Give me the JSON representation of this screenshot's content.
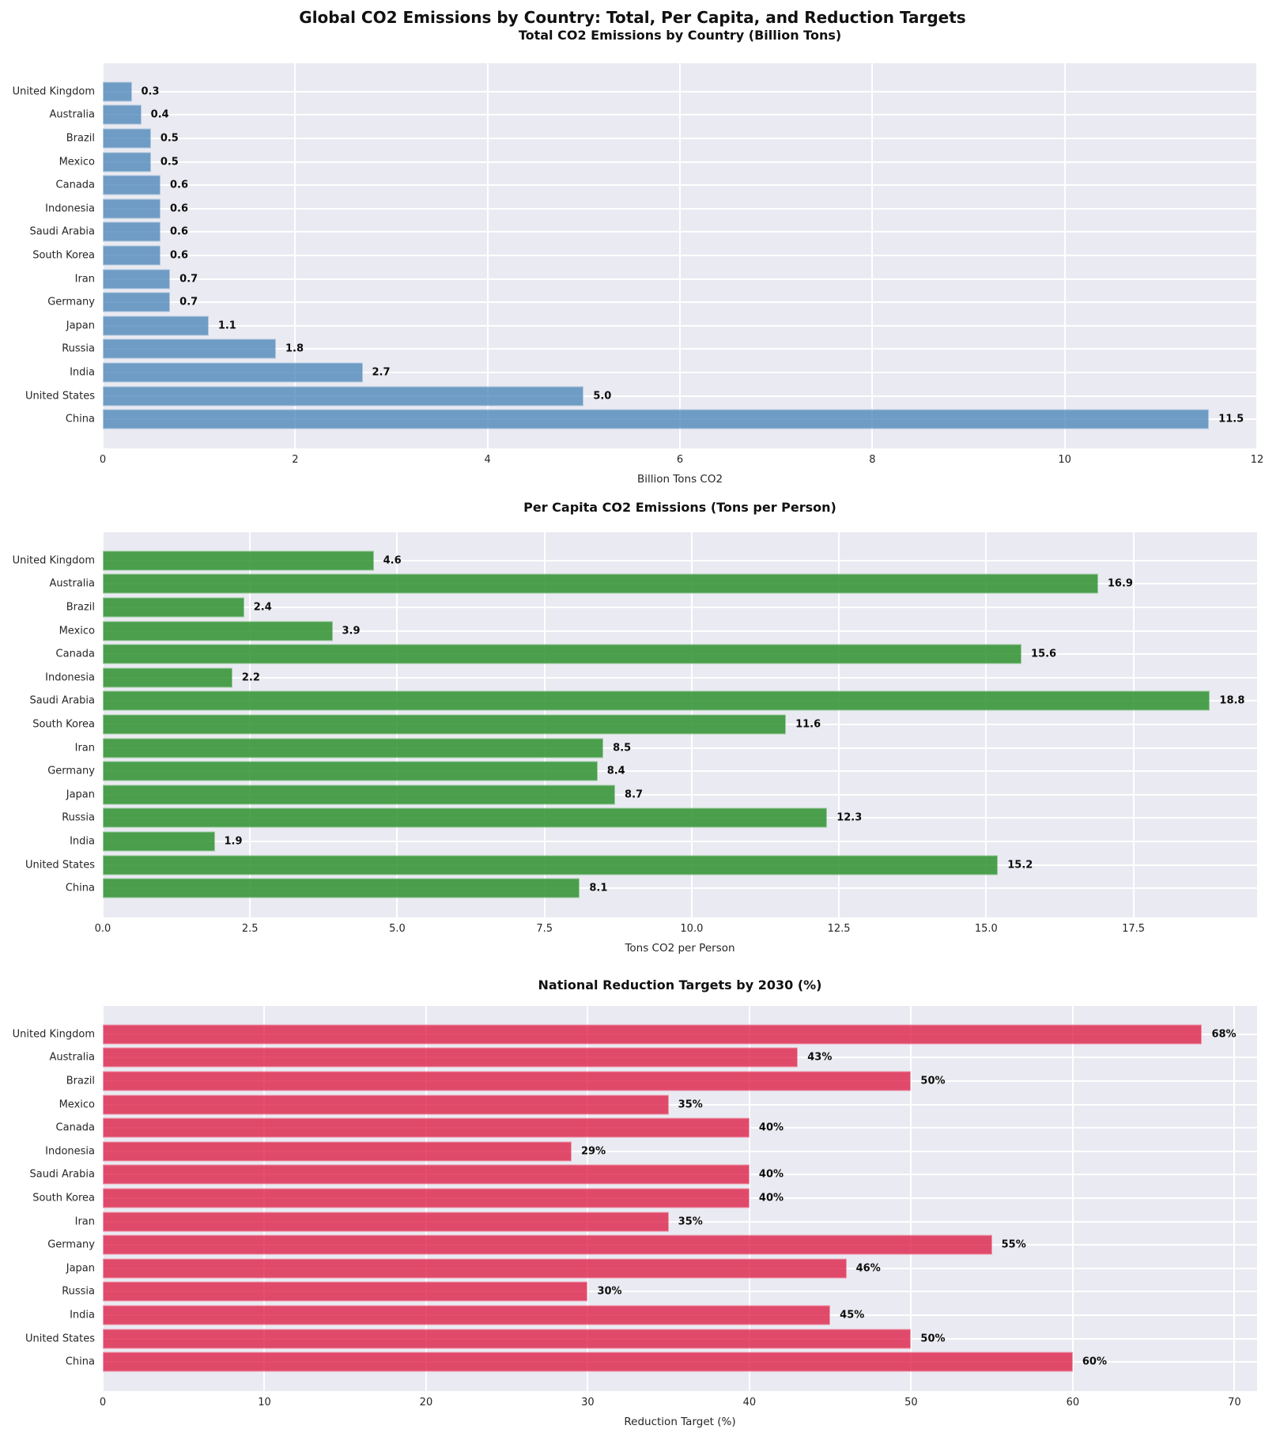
{
  "figure_title": "Global CO2 Emissions by Country: Total, Per Capita, and Reduction Targets",
  "style": {
    "plot_bg": "#EAEAF2",
    "grid_color": "#FFFFFF",
    "text_color": "#262626",
    "figure_bg": "#FFFFFF"
  },
  "chart_data": [
    {
      "type": "bar",
      "orientation": "horizontal",
      "title": "Total CO2 Emissions by Country (Billion Tons)",
      "xlabel": "Billion Tons CO2",
      "bar_color": "#4682B4",
      "bar_alpha": 0.75,
      "grid": true,
      "xlim": [
        0,
        12.0
      ],
      "xticks": [
        0,
        2,
        4,
        6,
        8,
        10,
        12
      ],
      "xtick_labels": [
        "0",
        "2",
        "4",
        "6",
        "8",
        "10",
        "12"
      ],
      "categories": [
        "United Kingdom",
        "Australia",
        "Brazil",
        "Mexico",
        "Canada",
        "Indonesia",
        "Saudi Arabia",
        "South Korea",
        "Iran",
        "Germany",
        "Japan",
        "Russia",
        "India",
        "United States",
        "China"
      ],
      "values": [
        0.3,
        0.4,
        0.5,
        0.5,
        0.6,
        0.6,
        0.6,
        0.6,
        0.7,
        0.7,
        1.1,
        1.8,
        2.7,
        5.0,
        11.5
      ],
      "value_labels": [
        "0.3",
        "0.4",
        "0.5",
        "0.5",
        "0.6",
        "0.6",
        "0.6",
        "0.6",
        "0.7",
        "0.7",
        "1.1",
        "1.8",
        "2.7",
        "5.0",
        "11.5"
      ]
    },
    {
      "type": "bar",
      "orientation": "horizontal",
      "title": "Per Capita CO2 Emissions (Tons per Person)",
      "xlabel": "Tons CO2 per Person",
      "bar_color": "#228B22",
      "bar_alpha": 0.8,
      "grid": true,
      "xlim": [
        0,
        19.6
      ],
      "xticks": [
        0,
        2.5,
        5,
        7.5,
        10,
        12.5,
        15,
        17.5
      ],
      "xtick_labels": [
        "0.0",
        "2.5",
        "5.0",
        "7.5",
        "10.0",
        "12.5",
        "15.0",
        "17.5"
      ],
      "categories": [
        "United Kingdom",
        "Australia",
        "Brazil",
        "Mexico",
        "Canada",
        "Indonesia",
        "Saudi Arabia",
        "South Korea",
        "Iran",
        "Germany",
        "Japan",
        "Russia",
        "India",
        "United States",
        "China"
      ],
      "values": [
        4.6,
        16.9,
        2.4,
        3.9,
        15.6,
        2.2,
        18.8,
        11.6,
        8.5,
        8.4,
        8.7,
        12.3,
        1.9,
        15.2,
        8.1
      ],
      "value_labels": [
        "4.6",
        "16.9",
        "2.4",
        "3.9",
        "15.6",
        "2.2",
        "18.8",
        "11.6",
        "8.5",
        "8.4",
        "8.7",
        "12.3",
        "1.9",
        "15.2",
        "8.1"
      ]
    },
    {
      "type": "bar",
      "orientation": "horizontal",
      "title": "National Reduction Targets by 2030 (%)",
      "xlabel": "Reduction Target (%)",
      "bar_color": "#DC143C",
      "bar_alpha": 0.75,
      "grid": true,
      "xlim": [
        0,
        71.4
      ],
      "xticks": [
        0,
        10,
        20,
        30,
        40,
        50,
        60,
        70
      ],
      "xtick_labels": [
        "0",
        "10",
        "20",
        "30",
        "40",
        "50",
        "60",
        "70"
      ],
      "categories": [
        "United Kingdom",
        "Australia",
        "Brazil",
        "Mexico",
        "Canada",
        "Indonesia",
        "Saudi Arabia",
        "South Korea",
        "Iran",
        "Germany",
        "Japan",
        "Russia",
        "India",
        "United States",
        "China"
      ],
      "values": [
        68,
        43,
        50,
        35,
        40,
        29,
        40,
        40,
        35,
        55,
        46,
        30,
        45,
        50,
        60
      ],
      "value_labels": [
        "68%",
        "43%",
        "50%",
        "35%",
        "40%",
        "29%",
        "40%",
        "40%",
        "35%",
        "55%",
        "46%",
        "30%",
        "45%",
        "50%",
        "60%"
      ]
    }
  ]
}
